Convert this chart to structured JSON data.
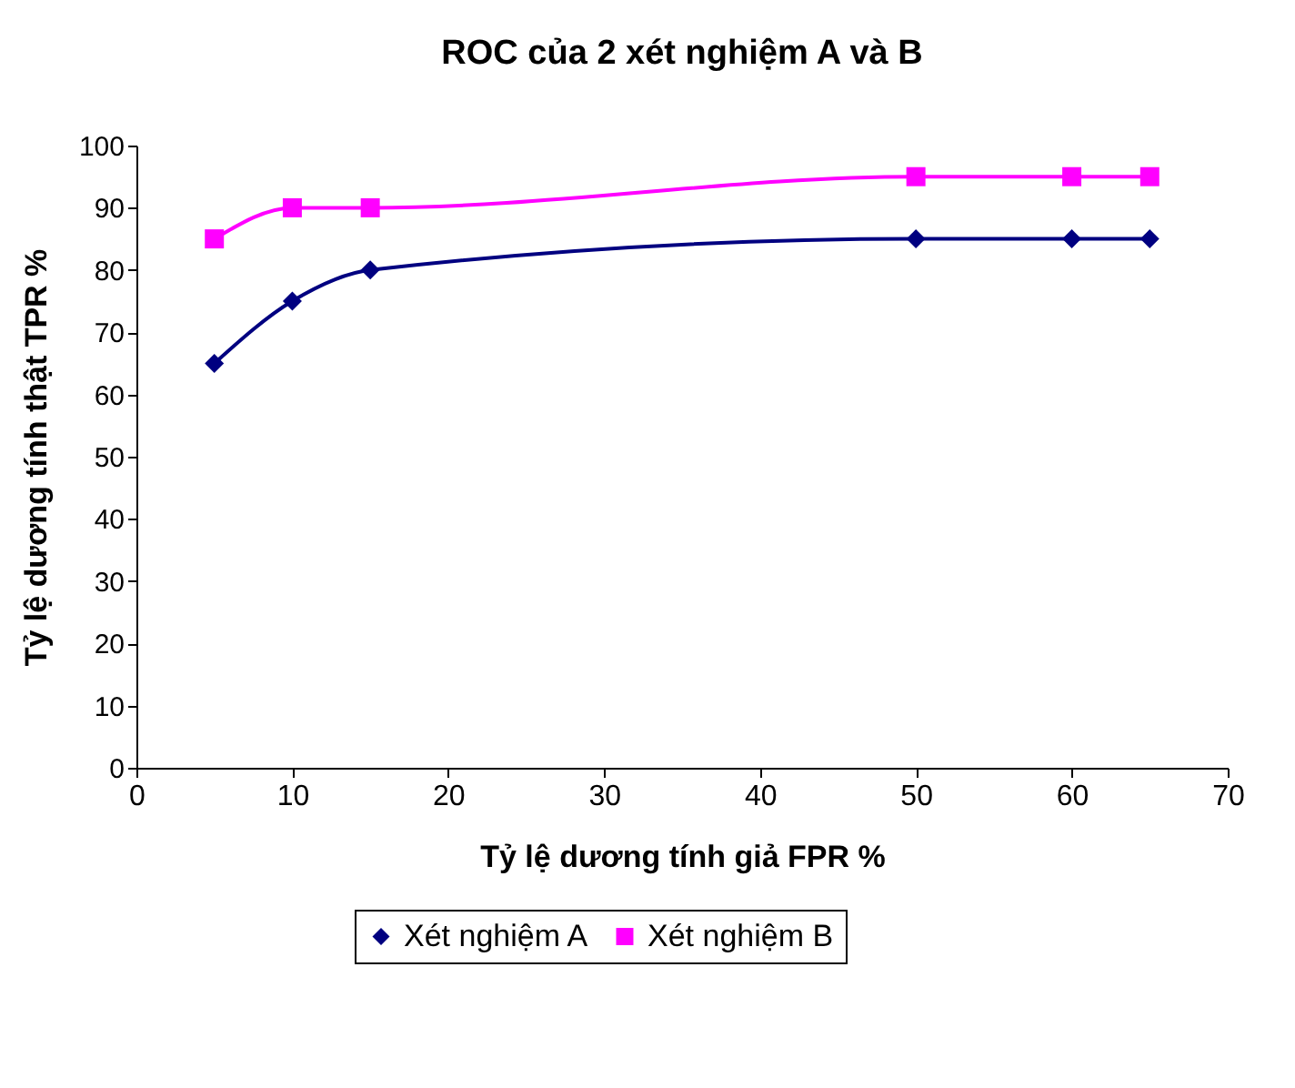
{
  "chart_data": {
    "type": "line",
    "title": "ROC của 2 xét nghiệm A và B",
    "xlabel": "Tỷ lệ dương tính giả FPR %",
    "ylabel": "Tỷ lệ dương tính thật TPR %",
    "x": [
      5,
      10,
      15,
      50,
      60,
      65
    ],
    "series": [
      {
        "name": "Xét nghiệm A",
        "color": "#000080",
        "marker": "diamond",
        "values": [
          65,
          75,
          80,
          85,
          85,
          85
        ]
      },
      {
        "name": "Xét nghiệm B",
        "color": "#ff00ff",
        "marker": "square",
        "values": [
          85,
          90,
          90,
          95,
          95,
          95
        ]
      }
    ],
    "xlim": [
      0,
      70
    ],
    "xticks": [
      0,
      10,
      20,
      30,
      40,
      50,
      60,
      70
    ],
    "ylim": [
      0,
      100
    ],
    "yticks": [
      0,
      10,
      20,
      30,
      40,
      50,
      60,
      70,
      80,
      90,
      100
    ],
    "grid": false,
    "legend": "bottom",
    "line_style": "solid"
  }
}
